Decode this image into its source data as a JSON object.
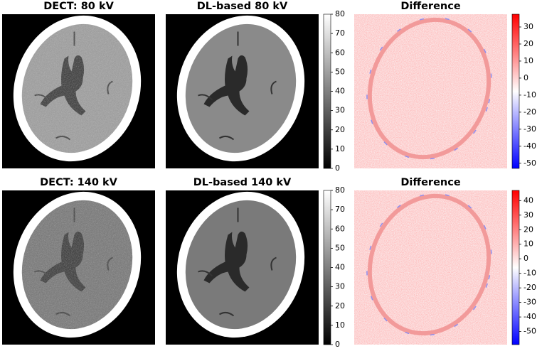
{
  "rows": [
    {
      "panels": [
        {
          "title": "DECT: 80 kV"
        },
        {
          "title": "DL-based 80 kV"
        },
        {
          "title": "Difference"
        }
      ],
      "gray_colorbar": {
        "lim": [
          0,
          80
        ],
        "ticks": [
          0,
          10,
          20,
          30,
          40,
          50,
          60,
          70,
          80
        ]
      },
      "diff_colorbar": {
        "lim": [
          -53,
          37.5
        ],
        "ticks": [
          -50,
          -40,
          -30,
          -20,
          -10,
          0,
          10,
          20,
          30
        ]
      }
    },
    {
      "panels": [
        {
          "title": "DECT: 140 kV"
        },
        {
          "title": "DL-based 140 kV"
        },
        {
          "title": "Difference"
        }
      ],
      "gray_colorbar": {
        "lim": [
          0,
          80
        ],
        "ticks": [
          0,
          10,
          20,
          30,
          40,
          50,
          60,
          70,
          80
        ]
      },
      "diff_colorbar": {
        "lim": [
          -59,
          47
        ],
        "ticks": [
          -50,
          -40,
          -30,
          -20,
          -10,
          0,
          10,
          20,
          30,
          40
        ]
      }
    }
  ]
}
